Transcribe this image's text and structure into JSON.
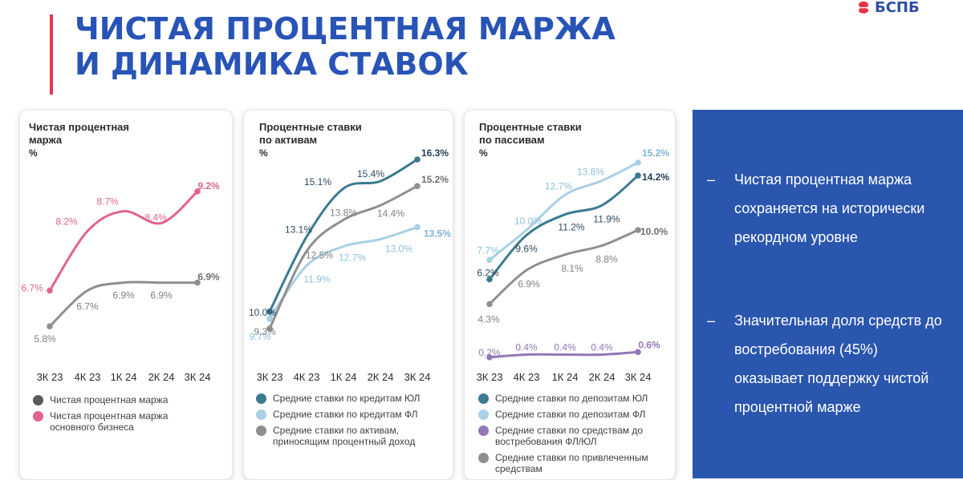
{
  "header": {
    "title_line1": "ЧИСТАЯ ПРОЦЕНТНАЯ МАРЖА",
    "title_line2": "И ДИНАМИКА СТАВОК",
    "logo_text": "БСПБ",
    "accent_color": "#e8344b",
    "title_color": "#2854b7"
  },
  "chart_data": [
    {
      "type": "line",
      "title": "Чистая процентная маржа",
      "unit": "%",
      "categories": [
        "3К 23",
        "4К 23",
        "1К 24",
        "2К 24",
        "3К 24"
      ],
      "series": [
        {
          "name": "Чистая процентная маржа",
          "color": "#8f8f8f",
          "values": [
            5.8,
            6.7,
            6.9,
            6.9,
            6.9
          ],
          "labels": [
            "5.8%",
            "6.7%",
            "6.9%",
            "6.9%",
            "6.9%"
          ]
        },
        {
          "name": "Чистая процентная маржа основного бизнеса",
          "color": "#e0648e",
          "values": [
            6.7,
            8.2,
            8.7,
            8.4,
            9.2
          ],
          "labels": [
            "6.7%",
            "8.2%",
            "8.7%",
            "8.4%",
            "9.2%"
          ]
        }
      ]
    },
    {
      "type": "line",
      "title": "Процентные ставки по активам",
      "unit": "%",
      "categories": [
        "3К 23",
        "4К 23",
        "1К 24",
        "2К 24",
        "3К 24"
      ],
      "series": [
        {
          "name": "Средние ставки по кредитам ЮЛ",
          "color": "#3a7b90",
          "values": [
            10.0,
            13.1,
            15.1,
            15.4,
            16.3
          ],
          "labels": [
            "10.0%",
            "13.1%",
            "15.1%",
            "15.4%",
            "16.3%"
          ]
        },
        {
          "name": "Средние ставки по кредитам ФЛ",
          "color": "#a9d0e4",
          "values": [
            9.7,
            11.9,
            12.7,
            13.0,
            13.5
          ],
          "labels": [
            "9.7%",
            "11.9%",
            "12.7%",
            "13.0%",
            "13.5%"
          ]
        },
        {
          "name": "Средние ставки по активам, приносящим процентный доход",
          "color": "#8f8f8f",
          "values": [
            9.3,
            12.5,
            13.8,
            14.4,
            15.2
          ],
          "labels": [
            "9.3%",
            "12.5%",
            "13.8%",
            "14.4%",
            "15.2%"
          ]
        }
      ]
    },
    {
      "type": "line",
      "title": "Процентные ставки по пассивам",
      "unit": "%",
      "categories": [
        "3К 23",
        "4К 23",
        "1К 24",
        "2К 24",
        "3К 24"
      ],
      "series": [
        {
          "name": "Средние ставки по депозитам ЮЛ",
          "color": "#3a7b90",
          "values": [
            6.2,
            9.6,
            11.2,
            11.9,
            14.2
          ],
          "labels": [
            "6.2%",
            "9.6%",
            "11.2%",
            "11.9%",
            "14.2%"
          ]
        },
        {
          "name": "Средние ставки по депозитам ФЛ",
          "color": "#a9d0e4",
          "values": [
            7.7,
            10.0,
            12.7,
            13.8,
            15.2
          ],
          "labels": [
            "7.7%",
            "10.0%",
            "12.7%",
            "13.8%",
            "15.2%"
          ]
        },
        {
          "name": "Средние ставки по средствам до востребования ФЛ/ЮЛ",
          "color": "#9278b5",
          "values": [
            0.2,
            0.4,
            0.4,
            0.4,
            0.6
          ],
          "labels": [
            "0.2%",
            "0.4%",
            "0.4%",
            "0.4%",
            "0.6%"
          ]
        },
        {
          "name": "Средние ставки по привлеченным средствам",
          "color": "#8f8f8f",
          "values": [
            4.3,
            6.9,
            8.1,
            8.8,
            10.0
          ],
          "labels": [
            "4.3%",
            "6.9%",
            "8.1%",
            "8.8%",
            "10.0%"
          ]
        }
      ]
    }
  ],
  "cards": [
    {
      "title_line1": "Чистая процентная",
      "title_line2": "маржа",
      "unit": "%",
      "legend": [
        {
          "color": "#5a5a5a",
          "line1": "Чистая процентная маржа",
          "line2": ""
        },
        {
          "color": "#e0648e",
          "line1": "Чистая процентная маржа",
          "line2": "основного бизнеса"
        }
      ]
    },
    {
      "title_line1": "Процентные ставки",
      "title_line2": "по активам",
      "unit": "%",
      "legend": [
        {
          "color": "#3a7b90",
          "line1": "Средние ставки по кредитам ЮЛ",
          "line2": ""
        },
        {
          "color": "#a9d0e4",
          "line1": "Средние ставки по кредитам ФЛ",
          "line2": ""
        },
        {
          "color": "#8f8f8f",
          "line1": "Средние ставки по активам,",
          "line2": "приносящим процентный доход"
        }
      ]
    },
    {
      "title_line1": "Процентные ставки",
      "title_line2": "по пассивам",
      "unit": "%",
      "legend": [
        {
          "color": "#3a7b90",
          "line1": "Средние ставки по депозитам ЮЛ",
          "line2": ""
        },
        {
          "color": "#a9d0e4",
          "line1": "Средние ставки по депозитам ФЛ",
          "line2": ""
        },
        {
          "color": "#9278b5",
          "line1": "Средние ставки по средствам до",
          "line2": "востребования ФЛ/ЮЛ"
        },
        {
          "color": "#8f8f8f",
          "line1": "Средние ставки по привлеченным",
          "line2": "средствам"
        }
      ]
    }
  ],
  "summary": {
    "background": "#2b56ae",
    "items": [
      {
        "dash": "–",
        "text": "Чистая процентная маржа сохраняется на исторически рекордном уровне"
      },
      {
        "dash": "–",
        "text": "Значительная доля средств до востребования (45%) оказывает поддержку чистой процентной марже"
      }
    ]
  }
}
